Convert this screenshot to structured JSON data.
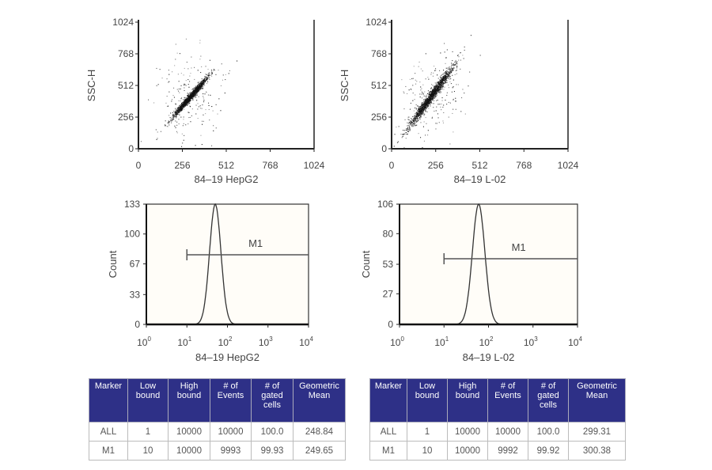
{
  "chart_data": [
    {
      "type": "scatter",
      "xlabel": "84–19 HepG2",
      "ylabel": "SSC-H",
      "xlim": [
        0,
        1024
      ],
      "ylim": [
        0,
        1024
      ],
      "xticks": [
        "0",
        "256",
        "512",
        "768",
        "1024"
      ],
      "yticks": [
        "0",
        "256",
        "512",
        "768",
        "1024"
      ],
      "cluster_center": [
        300,
        420
      ],
      "events": 10000
    },
    {
      "type": "scatter",
      "xlabel": "84–19 L-02",
      "ylabel": "SSC-H",
      "xlim": [
        0,
        1024
      ],
      "ylim": [
        0,
        1024
      ],
      "xticks": [
        "0",
        "256",
        "512",
        "768",
        "1024"
      ],
      "yticks": [
        "0",
        "256",
        "512",
        "768",
        "1024"
      ],
      "cluster_center": [
        230,
        430
      ],
      "events": 10000
    },
    {
      "type": "line",
      "xlabel": "84–19 HepG2",
      "ylabel": "Count",
      "xscale": "log",
      "xlim": [
        1,
        10000
      ],
      "ylim": [
        0,
        133
      ],
      "xticks": [
        "0",
        "1",
        "2",
        "3",
        "4"
      ],
      "yticks": [
        "0",
        "33",
        "67",
        "100",
        "133"
      ],
      "peak_x": 50,
      "peak_count": 133,
      "marker": {
        "label": "M1",
        "from": 10,
        "to": 10000
      }
    },
    {
      "type": "line",
      "xlabel": "84–19 L-02",
      "ylabel": "Count",
      "xscale": "log",
      "xlim": [
        1,
        10000
      ],
      "ylim": [
        0,
        106
      ],
      "xticks": [
        "0",
        "1",
        "2",
        "3",
        "4"
      ],
      "yticks": [
        "0",
        "27",
        "53",
        "80",
        "106"
      ],
      "peak_x": 60,
      "peak_count": 106,
      "marker": {
        "label": "M1",
        "from": 10,
        "to": 10000
      }
    }
  ],
  "tables": [
    {
      "headers": [
        "Marker",
        "Low bound",
        "High bound",
        "# of Events",
        "# of gated cells",
        "Geometric Mean"
      ],
      "rows": [
        [
          "ALL",
          "1",
          "10000",
          "10000",
          "100.0",
          "248.84"
        ],
        [
          "M1",
          "10",
          "10000",
          "9993",
          "99.93",
          "249.65"
        ]
      ]
    },
    {
      "headers": [
        "Marker",
        "Low bound",
        "High bound",
        "# of Events",
        "# of gated cells",
        "Geometric Mean"
      ],
      "rows": [
        [
          "ALL",
          "1",
          "10000",
          "10000",
          "100.0",
          "299.31"
        ],
        [
          "M1",
          "10",
          "10000",
          "9992",
          "99.92",
          "300.38"
        ]
      ]
    }
  ],
  "colors": {
    "table_header": "#2e3087",
    "points": "#111111"
  }
}
